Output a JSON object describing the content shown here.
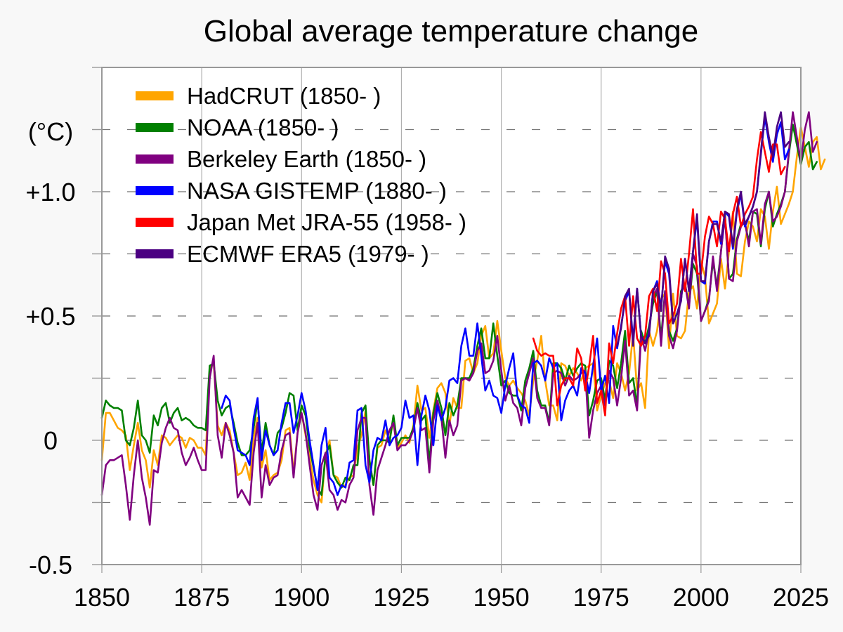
{
  "chart_data": {
    "type": "line",
    "title": "Global average temperature change",
    "xlabel": "",
    "ylabel": "(°C)",
    "xlim": [
      1850,
      2025
    ],
    "ylim": [
      -0.5,
      1.5
    ],
    "x_ticks": [
      1850,
      1875,
      1900,
      1925,
      1950,
      1975,
      2000,
      2025
    ],
    "x_tick_labels": [
      "1850",
      "1875",
      "1900",
      "1925",
      "1950",
      "1975",
      "2000",
      "2025"
    ],
    "y_ticks": [
      -0.5,
      0,
      0.5,
      1.0
    ],
    "y_tick_labels": [
      "-0.5",
      "0",
      "+0.5",
      "+1.0"
    ],
    "y_minor_ticks": [
      -0.25,
      0.25,
      0.75,
      1.25
    ],
    "grid": true,
    "legend_position": "top-left",
    "series": [
      {
        "name": "HadCRUT (1850- )",
        "color": "#ffa500",
        "start": 1850,
        "values": [
          -0.08,
          0.11,
          0.11,
          0.08,
          0.05,
          0.04,
          0.02,
          -0.12,
          -0.02,
          0.07,
          -0.04,
          -0.08,
          -0.19,
          -0.04,
          -0.1,
          0.02,
          0.01,
          -0.02,
          0.0,
          0.02,
          0.01,
          -0.03,
          0.01,
          0.0,
          -0.03,
          -0.03,
          -0.06,
          0.29,
          0.31,
          0.06,
          0.02,
          0.07,
          0.04,
          -0.05,
          -0.14,
          -0.13,
          -0.09,
          -0.16,
          0.01,
          0.09,
          -0.11,
          -0.04,
          -0.16,
          -0.14,
          -0.13,
          -0.08,
          0.04,
          0.05,
          -0.13,
          0.03,
          0.11,
          0.02,
          -0.07,
          -0.16,
          -0.22,
          -0.25,
          -0.06,
          0.0,
          -0.14,
          -0.15,
          -0.19,
          -0.18,
          -0.15,
          -0.14,
          -0.03,
          0.02,
          0.12,
          -0.08,
          -0.18,
          -0.03,
          -0.02,
          0.04,
          0.0,
          0.08,
          -0.03,
          -0.01,
          0.02,
          -0.01,
          0.06,
          0.22,
          0.12,
          0.13,
          0.01,
          0.12,
          0.21,
          0.23,
          0.19,
          0.06,
          0.17,
          0.13,
          0.13,
          0.32,
          0.33,
          0.27,
          0.31,
          0.42,
          0.46,
          0.33,
          0.35,
          0.48,
          0.36,
          0.25,
          0.22,
          0.24,
          0.21,
          0.19,
          0.16,
          0.1,
          0.24,
          0.32,
          0.42,
          0.24,
          0.14,
          0.14,
          0.08,
          0.31,
          0.3,
          0.26,
          0.29,
          0.27,
          0.24,
          0.29,
          0.3,
          0.31,
          0.12,
          0.18,
          0.23,
          0.24,
          0.17,
          0.31,
          0.27,
          0.2,
          0.27,
          0.43,
          0.2,
          0.23,
          0.13,
          0.44,
          0.38,
          0.44,
          0.57,
          0.59,
          0.37,
          0.59,
          0.42,
          0.41,
          0.44,
          0.6,
          0.62,
          0.53,
          0.72,
          0.66,
          0.47,
          0.51,
          0.55,
          0.73,
          0.61,
          0.76,
          0.92,
          0.67,
          0.66,
          0.8,
          0.88,
          0.86,
          0.8,
          0.93,
          0.9,
          0.77,
          0.92,
          1.02,
          0.87,
          0.91,
          0.95,
          1.0,
          1.14,
          1.26,
          1.18,
          1.1,
          1.2,
          1.22,
          1.09,
          1.13
        ]
      },
      {
        "name": "NOAA (1850- )",
        "color": "#008000",
        "start": 1850,
        "values": [
          0.09,
          0.16,
          0.14,
          0.13,
          0.13,
          0.12,
          0.0,
          -0.02,
          0.05,
          0.16,
          0.02,
          0.0,
          -0.05,
          0.1,
          0.06,
          0.13,
          0.15,
          0.07,
          0.11,
          0.13,
          0.08,
          0.09,
          0.08,
          0.06,
          0.05,
          0.05,
          0.04,
          0.3,
          0.31,
          0.16,
          0.1,
          0.13,
          0.14,
          0.07,
          -0.01,
          -0.06,
          -0.06,
          -0.04,
          0.05,
          0.16,
          -0.05,
          0.07,
          -0.02,
          -0.06,
          0.03,
          0.05,
          0.11,
          0.19,
          0.18,
          0.04,
          0.14,
          0.1,
          -0.03,
          -0.11,
          -0.19,
          -0.22,
          -0.06,
          -0.02,
          -0.14,
          -0.17,
          -0.19,
          -0.15,
          -0.16,
          -0.1,
          -0.1,
          0.11,
          0.14,
          -0.08,
          -0.18,
          -0.02,
          0.0,
          0.0,
          -0.01,
          0.1,
          -0.02,
          0.01,
          0.01,
          0.01,
          0.05,
          0.15,
          0.08,
          0.1,
          -0.09,
          0.11,
          0.19,
          0.13,
          0.02,
          0.15,
          0.1,
          0.14,
          0.25,
          0.25,
          0.25,
          0.29,
          0.38,
          0.45,
          0.33,
          0.33,
          0.47,
          0.34,
          0.22,
          0.24,
          0.19,
          0.18,
          0.18,
          0.12,
          0.24,
          0.29,
          0.36,
          0.2,
          0.14,
          0.14,
          0.07,
          0.31,
          0.31,
          0.29,
          0.24,
          0.3,
          0.26,
          0.29,
          0.31,
          0.3,
          0.1,
          0.16,
          0.24,
          0.25,
          0.16,
          0.32,
          0.3,
          0.21,
          0.31,
          0.44,
          0.23,
          0.25,
          0.14,
          0.44,
          0.39,
          0.46,
          0.55,
          0.6,
          0.41,
          0.6,
          0.44,
          0.4,
          0.45,
          0.6,
          0.63,
          0.54,
          0.71,
          0.67,
          0.48,
          0.52,
          0.57,
          0.72,
          0.62,
          0.76,
          0.91,
          0.65,
          0.67,
          0.81,
          0.87,
          0.87,
          0.8,
          0.92,
          0.91,
          0.78,
          0.93,
          1.0,
          0.86,
          0.91,
          0.95,
          1.0,
          1.15,
          1.27,
          1.19,
          1.11,
          1.18,
          1.2,
          1.09,
          1.12
        ]
      },
      {
        "name": "Berkeley Earth (1850- )",
        "color": "#800080",
        "start": 1850,
        "values": [
          -0.22,
          -0.1,
          -0.08,
          -0.08,
          -0.07,
          -0.06,
          -0.18,
          -0.32,
          -0.14,
          0.0,
          -0.15,
          -0.23,
          -0.34,
          -0.12,
          -0.13,
          -0.01,
          0.05,
          0.09,
          0.05,
          0.04,
          -0.05,
          -0.1,
          -0.07,
          -0.03,
          -0.08,
          -0.12,
          -0.12,
          0.25,
          0.34,
          0.02,
          -0.07,
          0.07,
          0.02,
          -0.05,
          -0.23,
          -0.2,
          -0.23,
          -0.26,
          -0.05,
          0.07,
          -0.23,
          -0.1,
          -0.18,
          -0.15,
          -0.14,
          -0.04,
          0.02,
          0.03,
          -0.15,
          0.03,
          0.11,
          0.03,
          -0.1,
          -0.22,
          -0.28,
          -0.1,
          -0.05,
          -0.2,
          -0.22,
          -0.28,
          -0.24,
          -0.25,
          -0.18,
          -0.15,
          0.04,
          0.09,
          0.09,
          -0.18,
          -0.3,
          -0.12,
          -0.07,
          -0.02,
          0.04,
          0.07,
          -0.04,
          -0.02,
          -0.02,
          0.0,
          0.04,
          0.13,
          0.04,
          0.05,
          -0.13,
          0.08,
          0.16,
          0.09,
          -0.07,
          0.08,
          0.02,
          0.06,
          0.24,
          0.25,
          0.24,
          0.27,
          0.36,
          0.39,
          0.27,
          0.28,
          0.32,
          0.42,
          0.28,
          0.16,
          0.22,
          0.15,
          0.13,
          0.06,
          0.21,
          0.27,
          0.33,
          0.17,
          0.13,
          0.13,
          0.06,
          0.27,
          0.28,
          0.27,
          0.22,
          0.26,
          0.24,
          0.25,
          0.27,
          0.28,
          0.01,
          0.12,
          0.19,
          0.22,
          0.14,
          0.28,
          0.25,
          0.14,
          0.25,
          0.4,
          0.18,
          0.2,
          0.12,
          0.42,
          0.36,
          0.44,
          0.58,
          0.61,
          0.38,
          0.6,
          0.42,
          0.37,
          0.44,
          0.59,
          0.63,
          0.53,
          0.75,
          0.7,
          0.48,
          0.52,
          0.56,
          0.74,
          0.6,
          0.76,
          0.9,
          0.65,
          0.64,
          0.8,
          0.86,
          0.88,
          0.78,
          0.92,
          0.93,
          0.79,
          0.95,
          1.0,
          0.88,
          0.9,
          0.94,
          1.0,
          1.16,
          1.32,
          1.22,
          1.12,
          1.25,
          1.32,
          1.16,
          1.2
        ]
      },
      {
        "name": "NASA GISTEMP (1880- )",
        "color": "#0000ff",
        "start": 1880,
        "values": [
          0.13,
          0.18,
          0.16,
          0.05,
          -0.04,
          -0.05,
          -0.06,
          -0.1,
          0.09,
          0.17,
          -0.08,
          0.04,
          -0.02,
          -0.06,
          -0.04,
          0.07,
          0.15,
          0.15,
          0.03,
          0.1,
          0.19,
          0.12,
          0.0,
          -0.1,
          -0.2,
          -0.02,
          0.05,
          -0.15,
          -0.17,
          -0.22,
          -0.18,
          -0.19,
          -0.09,
          -0.08,
          0.12,
          0.13,
          -0.1,
          -0.17,
          -0.04,
          0.01,
          0.0,
          0.08,
          -0.02,
          0.01,
          0.02,
          0.05,
          0.16,
          0.09,
          0.1,
          -0.1,
          0.1,
          0.18,
          0.12,
          -0.02,
          0.14,
          0.08,
          0.13,
          0.24,
          0.25,
          0.23,
          0.38,
          0.45,
          0.34,
          0.34,
          0.47,
          0.34,
          0.2,
          0.24,
          0.18,
          0.17,
          0.11,
          0.22,
          0.29,
          0.35,
          0.18,
          0.14,
          0.13,
          0.07,
          0.31,
          0.32,
          0.3,
          0.24,
          0.33,
          0.29,
          0.31,
          0.08,
          0.16,
          0.2,
          0.22,
          0.18,
          0.29,
          0.27,
          0.19,
          0.3,
          0.41,
          0.2,
          0.26,
          0.15,
          0.46,
          0.37,
          0.46,
          0.56,
          0.6,
          0.4,
          0.61,
          0.42,
          0.39,
          0.43,
          0.6,
          0.64,
          0.53,
          0.72,
          0.67,
          0.47,
          0.51,
          0.56,
          0.73,
          0.6,
          0.76,
          0.89,
          0.64,
          0.63,
          0.8,
          0.88,
          0.88,
          0.79,
          0.92,
          0.9,
          0.77,
          0.92,
          0.99,
          0.86,
          0.9,
          0.94,
          1.0,
          1.15,
          1.3,
          1.2,
          1.12,
          1.23,
          1.28,
          1.13,
          1.17
        ]
      },
      {
        "name": "Japan Met JRA-55 (1958- )",
        "color": "#ff0000",
        "start": 1958,
        "values": [
          0.41,
          0.36,
          0.34,
          0.35,
          0.34,
          0.34,
          0.14,
          0.22,
          0.25,
          0.25,
          0.22,
          0.37,
          0.33,
          0.2,
          0.3,
          0.42,
          0.15,
          0.2,
          0.1,
          0.39,
          0.31,
          0.43,
          0.53,
          0.58,
          0.38,
          0.58,
          0.41,
          0.38,
          0.42,
          0.58,
          0.61,
          0.52,
          0.72,
          0.67,
          0.47,
          0.5,
          0.55,
          0.73,
          0.6,
          0.75,
          0.93,
          0.67,
          0.67,
          0.82,
          0.9,
          0.87,
          0.78,
          0.92,
          0.89,
          0.76,
          0.91,
          0.98,
          0.86,
          0.91,
          0.94,
          0.98,
          1.13,
          1.24,
          1.16,
          1.08,
          1.19,
          1.19,
          1.07,
          1.1
        ]
      },
      {
        "name": "ECMWF ERA5 (1979- )",
        "color": "#4b0082",
        "start": 1979,
        "values": [
          0.38,
          0.45,
          0.58,
          0.61,
          0.38,
          0.61,
          0.42,
          0.39,
          0.42,
          0.6,
          0.63,
          0.52,
          0.74,
          0.69,
          0.47,
          0.51,
          0.56,
          0.73,
          0.6,
          0.76,
          0.91,
          0.64,
          0.64,
          0.8,
          0.87,
          0.87,
          0.8,
          0.92,
          0.91,
          0.78,
          0.93,
          1.0,
          0.87,
          0.9,
          0.94,
          1.0,
          1.16,
          1.32,
          1.22,
          1.14,
          1.26,
          1.32,
          1.18,
          1.2
        ]
      }
    ]
  }
}
